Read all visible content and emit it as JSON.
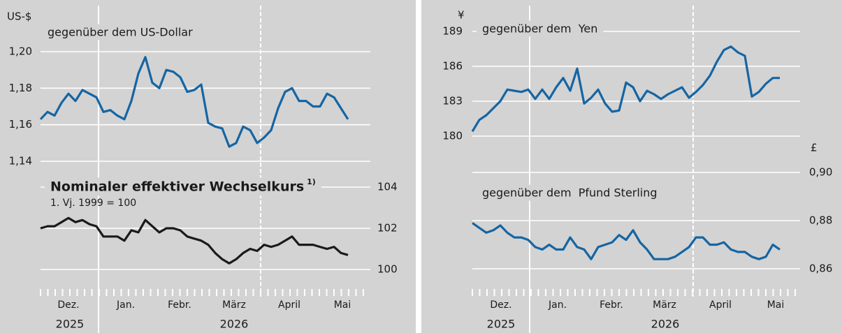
{
  "chart_data": [
    {
      "type": "line",
      "ylabel": "US-$",
      "ylim": [
        1.14,
        1.2
      ],
      "yticks": [
        {
          "value": 1.14,
          "label": "1,14"
        },
        {
          "value": 1.16,
          "label": "1,16"
        },
        {
          "value": 1.18,
          "label": "1,18"
        },
        {
          "value": 1.2,
          "label": "1,20"
        }
      ],
      "y2lim": [
        100,
        104
      ],
      "y2ticks": [
        100,
        102,
        104
      ],
      "grid": true,
      "months": [
        "Dez.",
        "Jan.",
        "Febr.",
        "März",
        "April",
        "Mai"
      ],
      "years": [
        "2025",
        "2026"
      ],
      "series": [
        {
          "name": "gegenüber dem US-Dollar",
          "color": "#1565a3",
          "values": [
            1.163,
            1.167,
            1.165,
            1.172,
            1.177,
            1.173,
            1.179,
            1.177,
            1.175,
            1.167,
            1.168,
            1.165,
            1.163,
            1.173,
            1.188,
            1.197,
            1.183,
            1.18,
            1.19,
            1.189,
            1.186,
            1.178,
            1.179,
            1.182,
            1.161,
            1.159,
            1.158,
            1.148,
            1.15,
            1.159,
            1.157,
            1.15,
            1.153,
            1.157,
            1.169,
            1.178,
            1.18,
            1.173,
            1.173,
            1.17,
            1.17,
            1.177,
            1.175,
            1.169,
            1.163
          ]
        },
        {
          "name": "Nominaler effektiver Wechselkurs",
          "name_note": "1)",
          "subtitle": "1. Vj. 1999 = 100",
          "color": "#1a1a1a",
          "axis": "y2",
          "values": [
            102.0,
            102.1,
            102.1,
            102.3,
            102.5,
            102.3,
            102.4,
            102.2,
            102.1,
            101.6,
            101.6,
            101.6,
            101.4,
            101.9,
            101.8,
            102.4,
            102.1,
            101.8,
            102.0,
            102.0,
            101.9,
            101.6,
            101.5,
            101.4,
            101.2,
            100.8,
            100.5,
            100.3,
            100.5,
            100.8,
            101.0,
            100.9,
            101.2,
            101.1,
            101.2,
            101.4,
            101.6,
            101.2,
            101.2,
            101.2,
            101.1,
            101.0,
            101.1,
            100.8,
            100.7
          ]
        }
      ]
    },
    {
      "type": "line",
      "ylabel": "¥",
      "y2label": "£",
      "ylim": [
        180,
        189
      ],
      "yticks": [
        180,
        183,
        186,
        189
      ],
      "y2lim": [
        0.86,
        0.9
      ],
      "y2ticks": [
        {
          "value": 0.86,
          "label": "0,86"
        },
        {
          "value": 0.88,
          "label": "0,88"
        },
        {
          "value": 0.9,
          "label": "0,90"
        }
      ],
      "grid": true,
      "months": [
        "Dez.",
        "Jan.",
        "Febr.",
        "März",
        "April",
        "Mai"
      ],
      "years": [
        "2025",
        "2026"
      ],
      "series": [
        {
          "name": "gegenüber dem  Yen",
          "color": "#1565a3",
          "values": [
            180.4,
            181.4,
            181.8,
            182.4,
            183.0,
            184.0,
            183.9,
            183.8,
            184.0,
            183.2,
            184.0,
            183.2,
            184.2,
            185.0,
            183.9,
            185.8,
            182.8,
            183.3,
            184.0,
            182.8,
            182.1,
            182.2,
            184.6,
            184.2,
            183.0,
            183.9,
            183.6,
            183.2,
            183.6,
            183.9,
            184.2,
            183.3,
            183.8,
            184.4,
            185.2,
            186.4,
            187.4,
            187.7,
            187.2,
            186.9,
            183.4,
            183.8,
            184.5,
            185.0,
            185.0
          ]
        },
        {
          "name": "gegenüber dem  Pfund Sterling",
          "color": "#1565a3",
          "axis": "y2",
          "values": [
            0.879,
            0.877,
            0.875,
            0.876,
            0.878,
            0.875,
            0.873,
            0.873,
            0.872,
            0.869,
            0.868,
            0.87,
            0.868,
            0.868,
            0.873,
            0.869,
            0.868,
            0.864,
            0.869,
            0.87,
            0.871,
            0.874,
            0.872,
            0.876,
            0.871,
            0.868,
            0.864,
            0.864,
            0.864,
            0.865,
            0.867,
            0.869,
            0.873,
            0.873,
            0.87,
            0.87,
            0.871,
            0.868,
            0.867,
            0.867,
            0.865,
            0.864,
            0.865,
            0.87,
            0.868
          ]
        }
      ]
    }
  ]
}
